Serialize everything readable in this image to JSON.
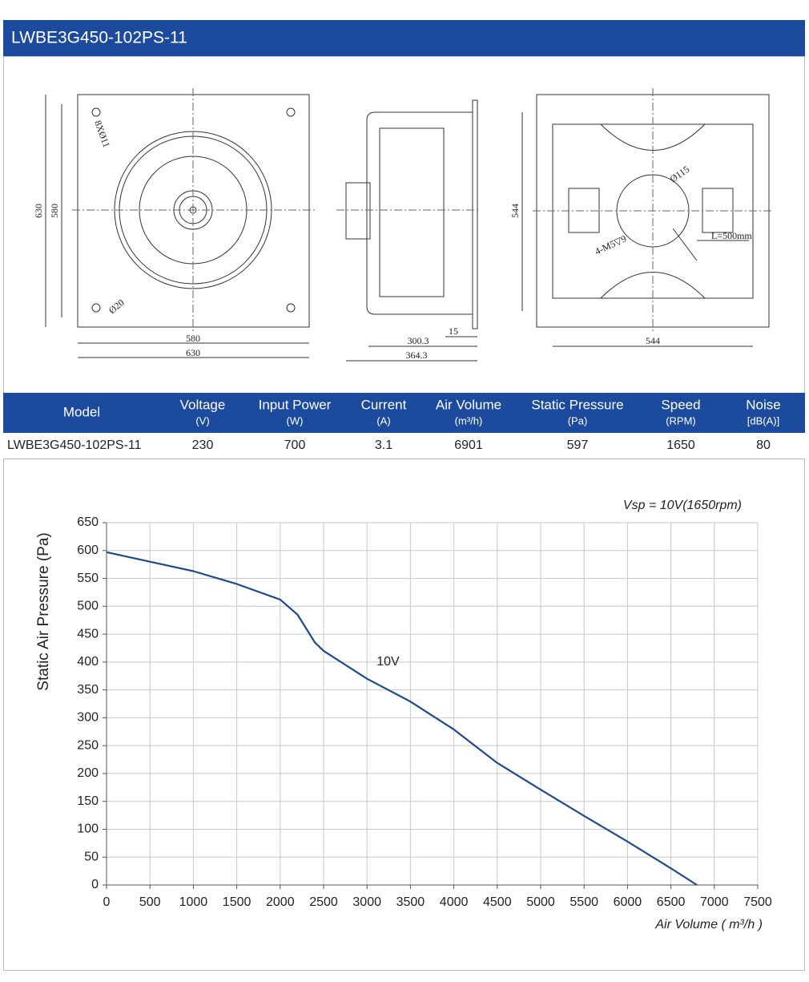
{
  "header": {
    "title": "LWBE3G450-102PS-11"
  },
  "drawing": {
    "labels": [
      "8XØ11",
      "Ø20",
      "630",
      "580",
      "580",
      "630",
      "300.3",
      "364.3",
      "15",
      "544",
      "544",
      "Ø115",
      "4-M5▽9",
      "L=500mm"
    ]
  },
  "table": {
    "headers": [
      {
        "name": "Model"
      },
      {
        "name": "Voltage",
        "unit": "(V)"
      },
      {
        "name": "Input Power",
        "unit": "(W)"
      },
      {
        "name": "Current",
        "unit": "(A)"
      },
      {
        "name": "Air Volume",
        "unit": "(m³/h)"
      },
      {
        "name": "Static Pressure",
        "unit": "(Pa)"
      },
      {
        "name": "Speed",
        "unit": "(RPM)"
      },
      {
        "name": "Noise",
        "unit": "[dB(A)]"
      }
    ],
    "rows": [
      [
        "LWBE3G450-102PS-11",
        "230",
        "700",
        "3.1",
        "6901",
        "597",
        "1650",
        "80"
      ]
    ]
  },
  "chart_data": {
    "type": "line",
    "subtitle": "Vsp = 10V(1650rpm)",
    "x_label": "Air Volume ( m³/h )",
    "y_label": "Static Air Pressure  (Pa)",
    "x": [
      0,
      500,
      1000,
      1500,
      2000,
      2200,
      2400,
      2500,
      3000,
      3500,
      4000,
      4500,
      5000,
      5500,
      6000,
      6500,
      6800
    ],
    "series": [
      {
        "name": "10V",
        "color": "#1f4a8a",
        "values": [
          597,
          580,
          563,
          540,
          512,
          485,
          435,
          420,
          370,
          329,
          279,
          219,
          171,
          124,
          78,
          30,
          0
        ]
      }
    ],
    "xlim": [
      0,
      7500
    ],
    "xticks": [
      0,
      500,
      1000,
      1500,
      2000,
      2500,
      3000,
      3500,
      4000,
      4500,
      5000,
      5500,
      6000,
      6500,
      7000,
      7500
    ],
    "ylim": [
      0,
      650
    ],
    "yticks": [
      0,
      50,
      100,
      150,
      200,
      250,
      300,
      350,
      400,
      450,
      500,
      550,
      600,
      650
    ],
    "grid": true
  }
}
